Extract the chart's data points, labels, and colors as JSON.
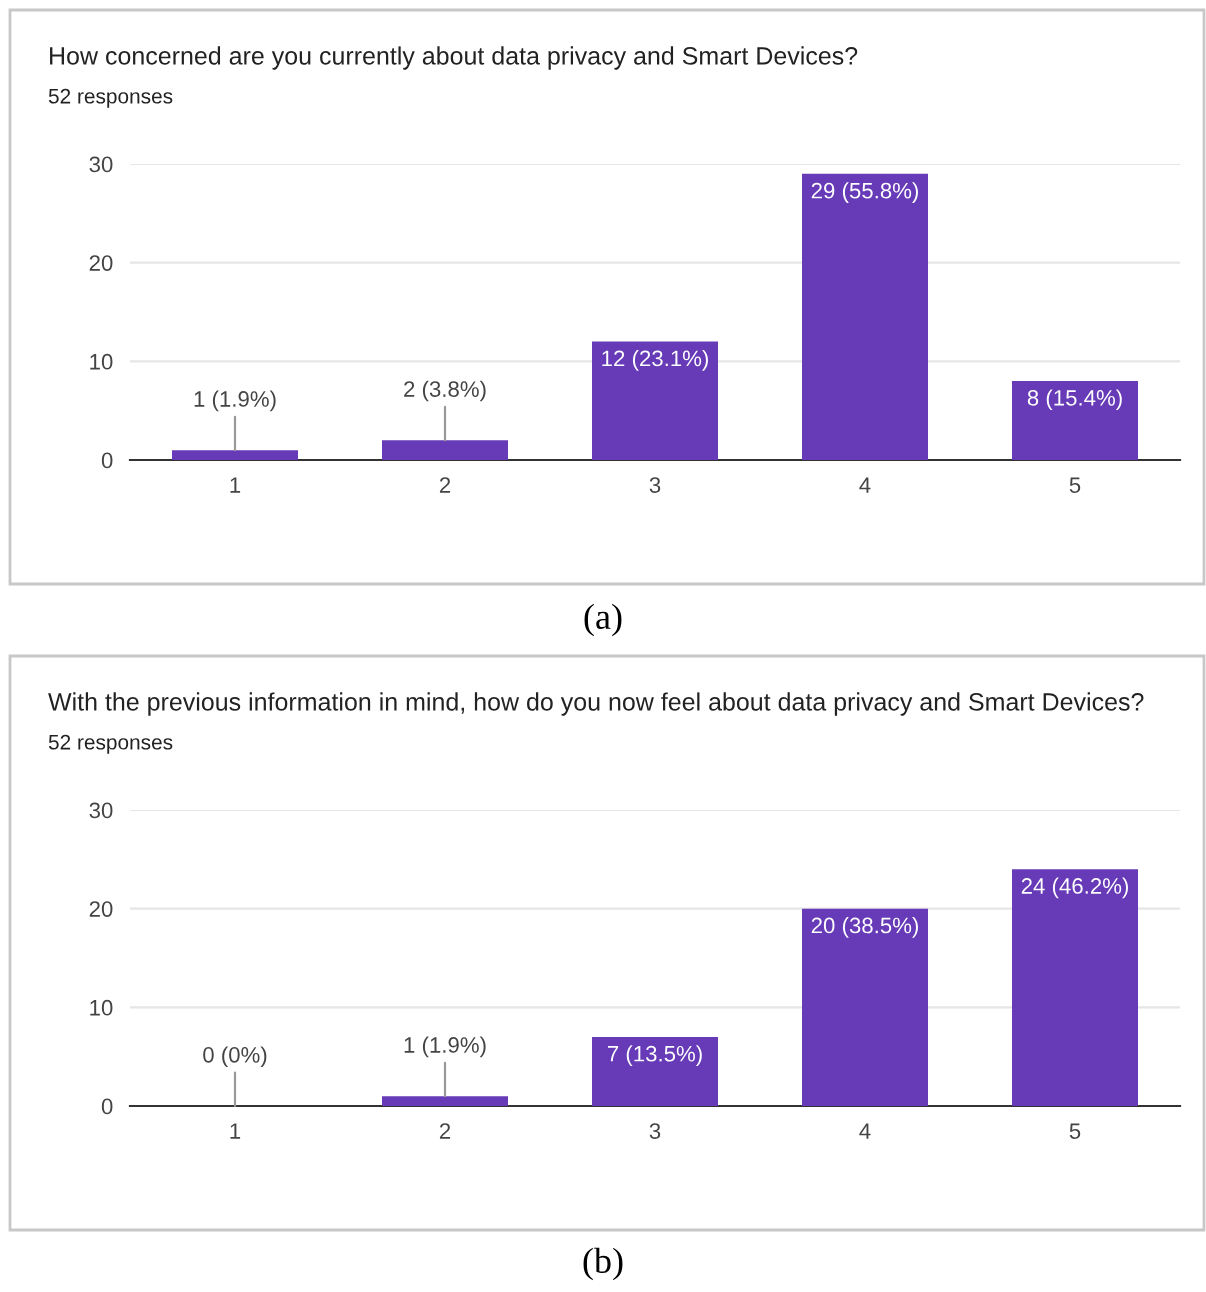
{
  "chart_data": [
    {
      "type": "bar",
      "title": "How concerned are you currently about data privacy and Smart Devices?",
      "subtitle": "52 responses",
      "categories": [
        "1",
        "2",
        "3",
        "4",
        "5"
      ],
      "values": [
        1,
        2,
        12,
        29,
        8
      ],
      "value_labels": [
        "1 (1.9%)",
        "2 (3.8%)",
        "12 (23.1%)",
        "29 (55.8%)",
        "8 (15.4%)"
      ],
      "color": "#673ab7",
      "ylim": [
        0,
        30
      ],
      "yticks": [
        0,
        10,
        20,
        30
      ],
      "grid": "y",
      "annotations": [
        "(a)"
      ]
    },
    {
      "type": "bar",
      "title": "With the previous information in mind, how do you now feel about data privacy and Smart Devices?",
      "subtitle": "52 responses",
      "categories": [
        "1",
        "2",
        "3",
        "4",
        "5"
      ],
      "values": [
        0,
        1,
        7,
        20,
        24
      ],
      "value_labels": [
        "0 (0%)",
        "1 (1.9%)",
        "7 (13.5%)",
        "20 (38.5%)",
        "24 (46.2%)"
      ],
      "color": "#673ab7",
      "ylim": [
        0,
        30
      ],
      "yticks": [
        0,
        10,
        20,
        30
      ],
      "grid": "y",
      "annotations": [
        "(b)"
      ]
    }
  ]
}
